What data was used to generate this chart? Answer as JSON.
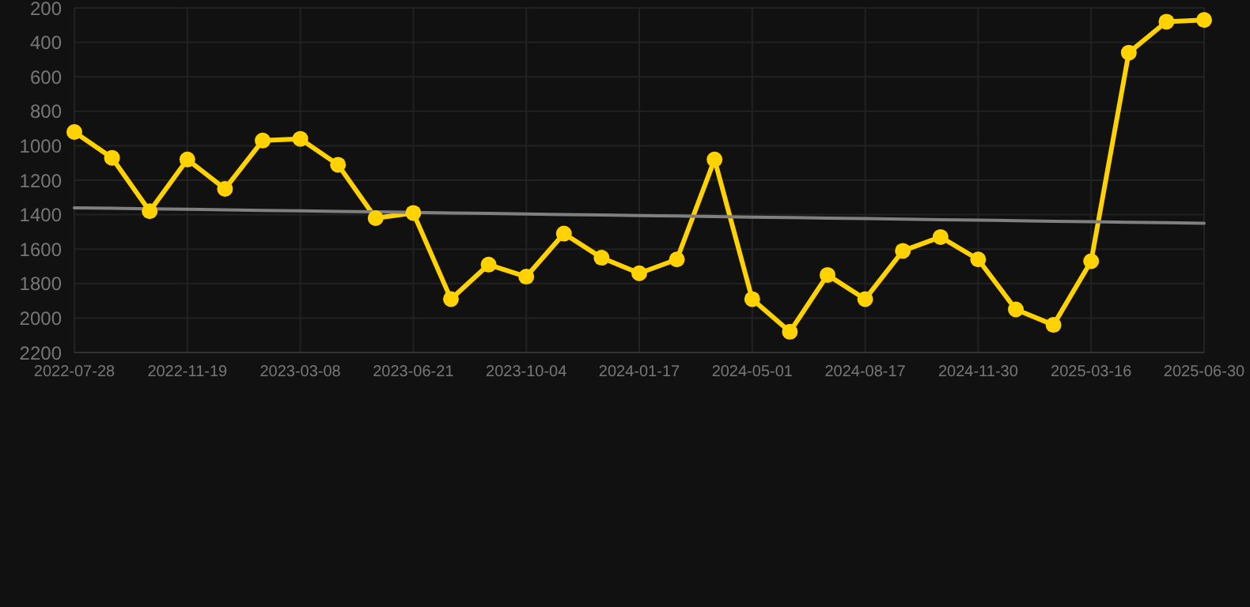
{
  "chart_data": {
    "type": "line",
    "categories": [
      "2022-07-28",
      null,
      null,
      "2022-11-19",
      null,
      null,
      "2023-03-08",
      null,
      null,
      "2023-06-21",
      null,
      null,
      "2023-10-04",
      null,
      null,
      "2024-01-17",
      null,
      null,
      "2024-05-01",
      null,
      null,
      "2024-08-17",
      null,
      null,
      "2024-11-30",
      null,
      null,
      "2025-03-16",
      null,
      null,
      "2025-06-30"
    ],
    "series": [
      {
        "color": "#ffd200",
        "values": [
          920,
          1070,
          1380,
          1080,
          1250,
          970,
          960,
          1110,
          1420,
          1390,
          1890,
          1690,
          1760,
          1510,
          1650,
          1740,
          1660,
          1080,
          1890,
          2080,
          1750,
          1890,
          1610,
          1530,
          1660,
          1950,
          2040,
          1670,
          460,
          280,
          270
        ]
      },
      {
        "type": "line",
        "color": "#808080",
        "values": [
          1360,
          1363,
          1366,
          1369,
          1372,
          1375,
          1378,
          1381,
          1384,
          1387,
          1390,
          1393,
          1396,
          1399,
          1402,
          1405,
          1408,
          1411,
          1414,
          1417,
          1420,
          1423,
          1426,
          1429,
          1432,
          1435,
          1438,
          1441,
          1444,
          1447,
          1450
        ],
        "marker": "none"
      }
    ],
    "ylim": [
      2200,
      200
    ],
    "yticks": [
      200,
      400,
      600,
      800,
      1000,
      1200,
      1400,
      1600,
      1800,
      2000,
      2200
    ],
    "grid": true,
    "marker": "circle",
    "line_style": "solid"
  }
}
